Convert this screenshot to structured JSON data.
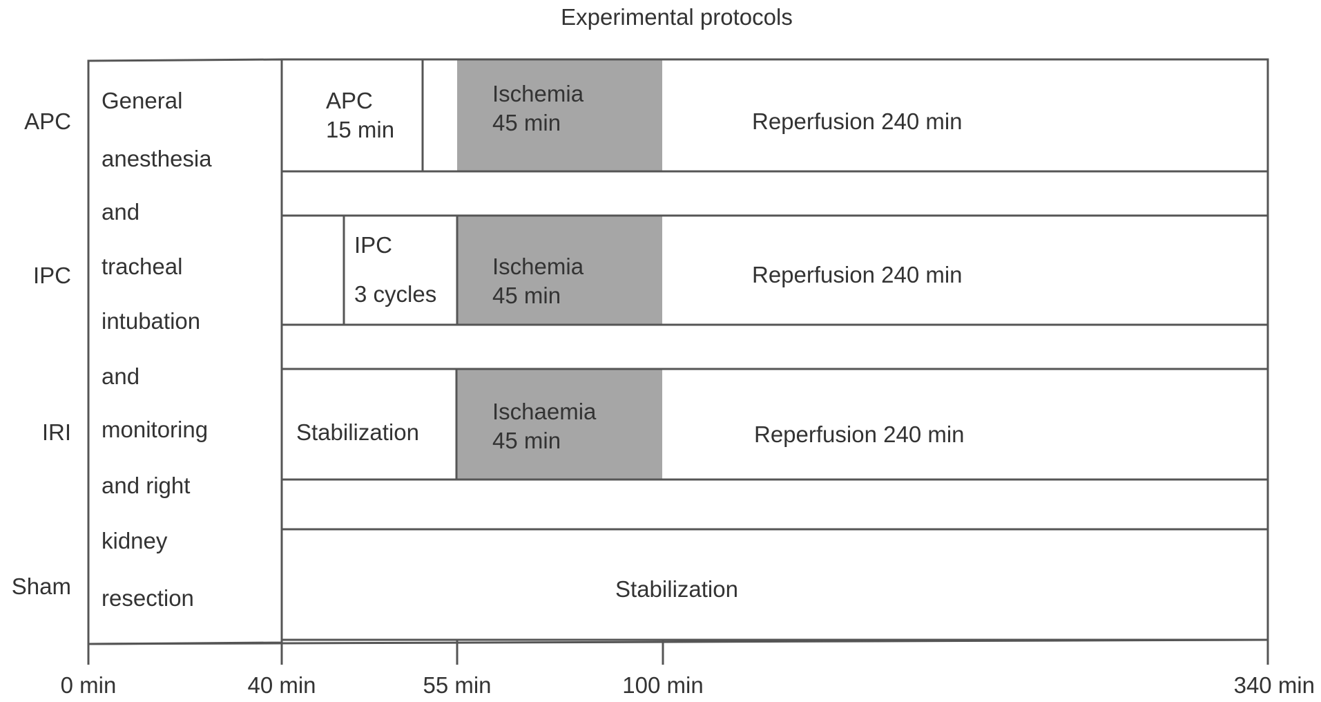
{
  "title": "Experimental protocols",
  "groups": [
    "APC",
    "IPC",
    "IRI",
    "Sham"
  ],
  "common_phase_lines": [
    "General",
    "anesthesia",
    "and",
    "tracheal",
    "intubation",
    "and",
    "monitoring",
    "and right",
    "kidney",
    "resection"
  ],
  "apc_row": {
    "precondition": [
      "APC",
      "15 min"
    ],
    "ischemia": [
      "Ischemia",
      "45 min"
    ],
    "reperfusion": "Reperfusion 240 min"
  },
  "ipc_row": {
    "precondition": [
      "IPC",
      "3 cycles"
    ],
    "ischemia": [
      "Ischemia",
      "45 min"
    ],
    "reperfusion": "Reperfusion 240 min"
  },
  "iri_row": {
    "stabilization": "Stabilization",
    "ischemia": [
      "Ischaemia",
      "45 min"
    ],
    "reperfusion": "Reperfusion 240 min"
  },
  "sham_row": {
    "stabilization": "Stabilization"
  },
  "timeline_ticks": [
    "0 min",
    "40 min",
    "55 min",
    "100 min",
    "340 min"
  ],
  "colors": {
    "ischemia_fill": "#a6a6a6",
    "line": "#555555",
    "text": "#333333"
  }
}
